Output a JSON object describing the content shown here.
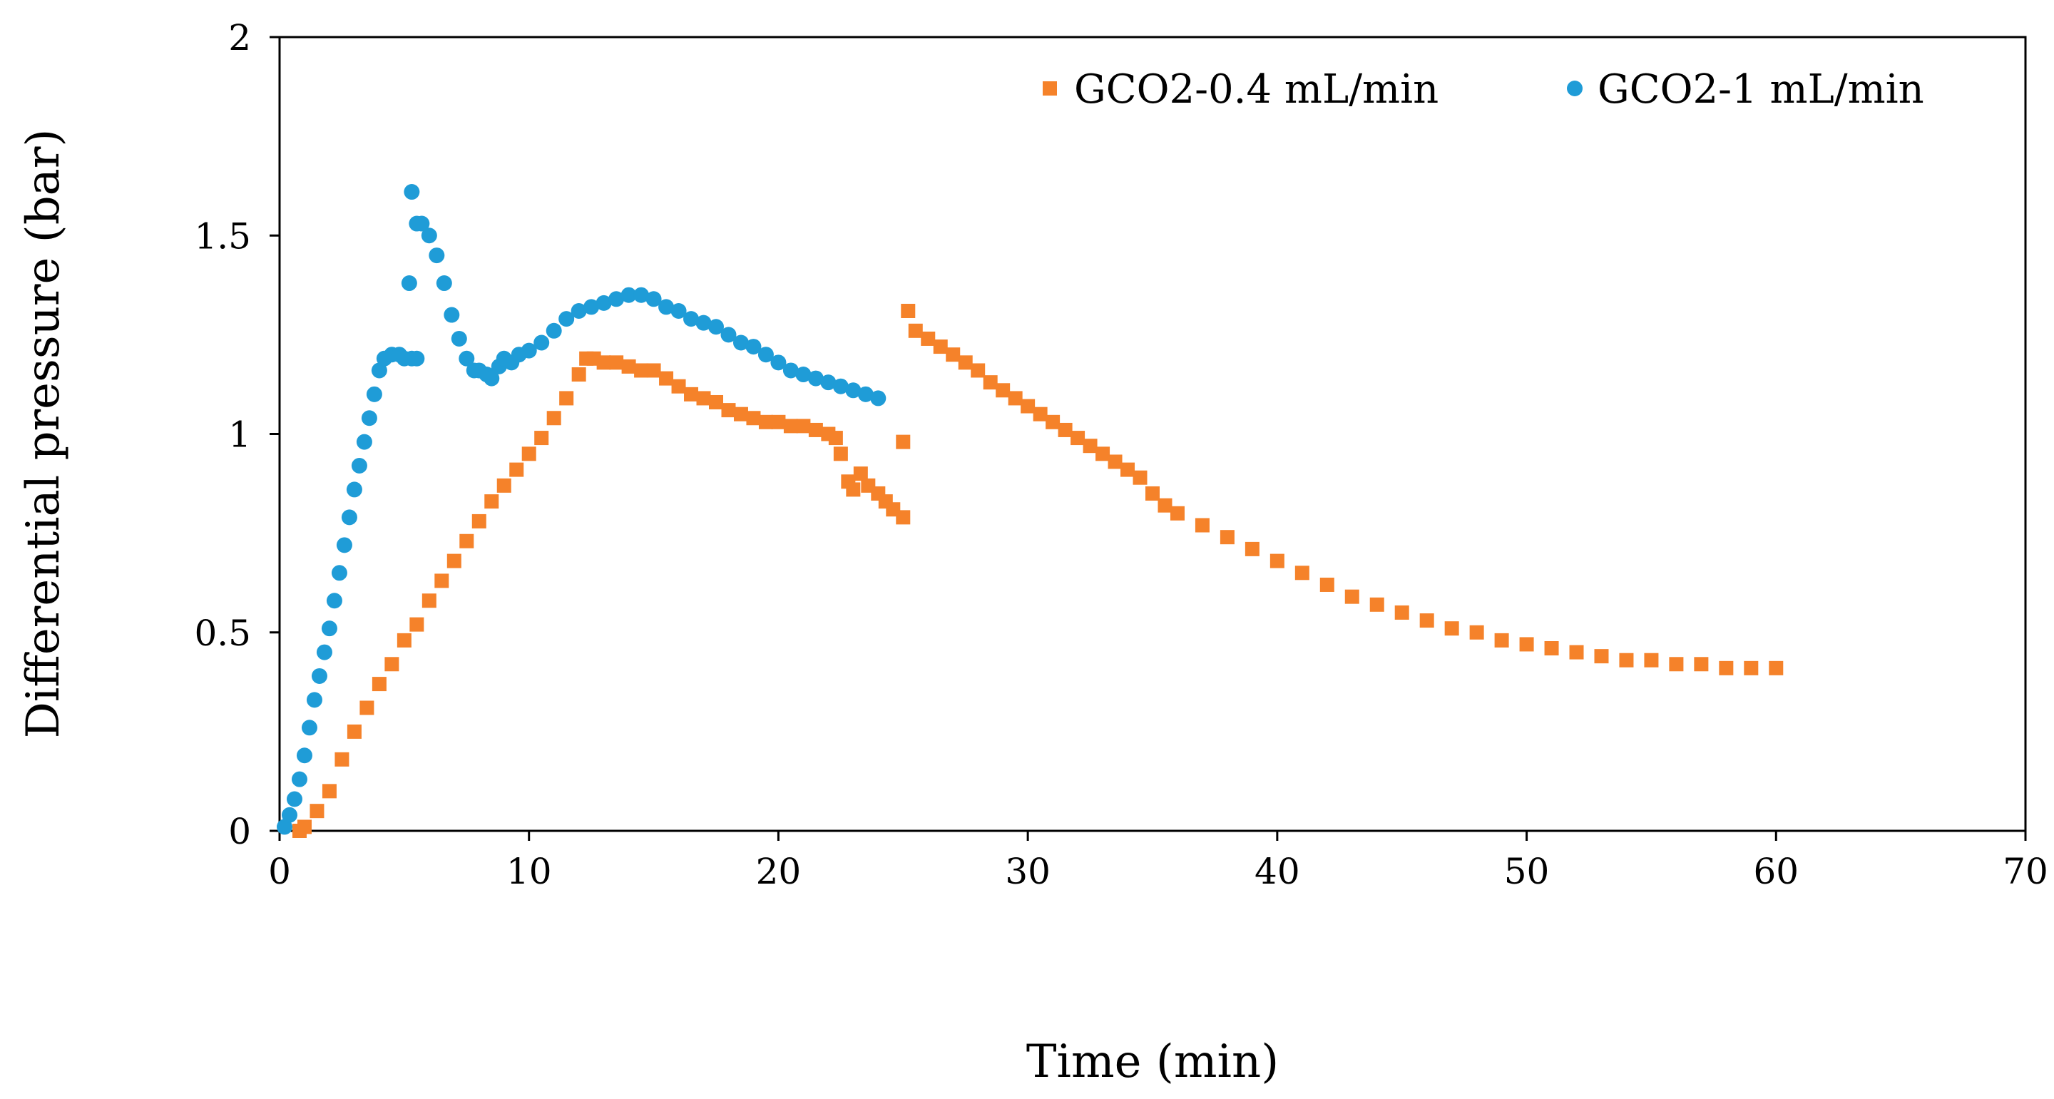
{
  "chart_data": {
    "type": "scatter",
    "title": "",
    "xlabel": "Time (min)",
    "ylabel": "Differential pressure (bar)",
    "xlim": [
      0,
      70
    ],
    "ylim": [
      0,
      2
    ],
    "xticks": [
      0,
      10,
      20,
      30,
      40,
      50,
      60,
      70
    ],
    "yticks": [
      0,
      0.5,
      1,
      1.5,
      2
    ],
    "ytick_labels": [
      "0",
      "0.5",
      "1",
      "1.5",
      "2"
    ],
    "grid": false,
    "legend_position": "top-right",
    "series": [
      {
        "name": "GCO2-0.4 mL/min",
        "marker": "square",
        "color": "#F5822A",
        "points": [
          [
            0.8,
            0.0
          ],
          [
            1.0,
            0.01
          ],
          [
            1.5,
            0.05
          ],
          [
            2.0,
            0.1
          ],
          [
            2.5,
            0.18
          ],
          [
            3.0,
            0.25
          ],
          [
            3.5,
            0.31
          ],
          [
            4.0,
            0.37
          ],
          [
            4.5,
            0.42
          ],
          [
            5.0,
            0.48
          ],
          [
            5.5,
            0.52
          ],
          [
            6.0,
            0.58
          ],
          [
            6.5,
            0.63
          ],
          [
            7.0,
            0.68
          ],
          [
            7.5,
            0.73
          ],
          [
            8.0,
            0.78
          ],
          [
            8.5,
            0.83
          ],
          [
            9.0,
            0.87
          ],
          [
            9.5,
            0.91
          ],
          [
            10.0,
            0.95
          ],
          [
            10.5,
            0.99
          ],
          [
            11.0,
            1.04
          ],
          [
            11.5,
            1.09
          ],
          [
            12.0,
            1.15
          ],
          [
            12.3,
            1.19
          ],
          [
            12.6,
            1.19
          ],
          [
            13.0,
            1.18
          ],
          [
            13.5,
            1.18
          ],
          [
            14.0,
            1.17
          ],
          [
            14.5,
            1.16
          ],
          [
            15.0,
            1.16
          ],
          [
            15.5,
            1.14
          ],
          [
            16.0,
            1.12
          ],
          [
            16.5,
            1.1
          ],
          [
            17.0,
            1.09
          ],
          [
            17.5,
            1.08
          ],
          [
            18.0,
            1.06
          ],
          [
            18.5,
            1.05
          ],
          [
            19.0,
            1.04
          ],
          [
            19.5,
            1.03
          ],
          [
            20.0,
            1.03
          ],
          [
            20.5,
            1.02
          ],
          [
            21.0,
            1.02
          ],
          [
            21.5,
            1.01
          ],
          [
            22.0,
            1.0
          ],
          [
            22.3,
            0.99
          ],
          [
            22.5,
            0.95
          ],
          [
            22.8,
            0.88
          ],
          [
            23.0,
            0.86
          ],
          [
            23.3,
            0.9
          ],
          [
            23.6,
            0.87
          ],
          [
            24.0,
            0.85
          ],
          [
            24.3,
            0.83
          ],
          [
            24.6,
            0.81
          ],
          [
            25.0,
            0.79
          ],
          [
            25.0,
            0.98
          ],
          [
            25.2,
            1.31
          ],
          [
            25.5,
            1.26
          ],
          [
            26.0,
            1.24
          ],
          [
            26.5,
            1.22
          ],
          [
            27.0,
            1.2
          ],
          [
            27.5,
            1.18
          ],
          [
            28.0,
            1.16
          ],
          [
            28.5,
            1.13
          ],
          [
            29.0,
            1.11
          ],
          [
            29.5,
            1.09
          ],
          [
            30.0,
            1.07
          ],
          [
            30.5,
            1.05
          ],
          [
            31.0,
            1.03
          ],
          [
            31.5,
            1.01
          ],
          [
            32.0,
            0.99
          ],
          [
            32.5,
            0.97
          ],
          [
            33.0,
            0.95
          ],
          [
            33.5,
            0.93
          ],
          [
            34.0,
            0.91
          ],
          [
            34.5,
            0.89
          ],
          [
            35.0,
            0.85
          ],
          [
            35.5,
            0.82
          ],
          [
            36.0,
            0.8
          ],
          [
            37.0,
            0.77
          ],
          [
            38.0,
            0.74
          ],
          [
            39.0,
            0.71
          ],
          [
            40.0,
            0.68
          ],
          [
            41.0,
            0.65
          ],
          [
            42.0,
            0.62
          ],
          [
            43.0,
            0.59
          ],
          [
            44.0,
            0.57
          ],
          [
            45.0,
            0.55
          ],
          [
            46.0,
            0.53
          ],
          [
            47.0,
            0.51
          ],
          [
            48.0,
            0.5
          ],
          [
            49.0,
            0.48
          ],
          [
            50.0,
            0.47
          ],
          [
            51.0,
            0.46
          ],
          [
            52.0,
            0.45
          ],
          [
            53.0,
            0.44
          ],
          [
            54.0,
            0.43
          ],
          [
            55.0,
            0.43
          ],
          [
            56.0,
            0.42
          ],
          [
            57.0,
            0.42
          ],
          [
            58.0,
            0.41
          ],
          [
            59.0,
            0.41
          ],
          [
            60.0,
            0.41
          ]
        ]
      },
      {
        "name": "GCO2-1 mL/min",
        "marker": "circle",
        "color": "#1F9CD7",
        "points": [
          [
            0.2,
            0.01
          ],
          [
            0.4,
            0.04
          ],
          [
            0.6,
            0.08
          ],
          [
            0.8,
            0.13
          ],
          [
            1.0,
            0.19
          ],
          [
            1.2,
            0.26
          ],
          [
            1.4,
            0.33
          ],
          [
            1.6,
            0.39
          ],
          [
            1.8,
            0.45
          ],
          [
            2.0,
            0.51
          ],
          [
            2.2,
            0.58
          ],
          [
            2.4,
            0.65
          ],
          [
            2.6,
            0.72
          ],
          [
            2.8,
            0.79
          ],
          [
            3.0,
            0.86
          ],
          [
            3.2,
            0.92
          ],
          [
            3.4,
            0.98
          ],
          [
            3.6,
            1.04
          ],
          [
            3.8,
            1.1
          ],
          [
            4.0,
            1.16
          ],
          [
            4.2,
            1.19
          ],
          [
            4.5,
            1.2
          ],
          [
            4.8,
            1.2
          ],
          [
            5.0,
            1.19
          ],
          [
            5.3,
            1.19
          ],
          [
            5.5,
            1.19
          ],
          [
            5.2,
            1.38
          ],
          [
            5.3,
            1.61
          ],
          [
            5.5,
            1.53
          ],
          [
            5.7,
            1.53
          ],
          [
            6.0,
            1.5
          ],
          [
            6.3,
            1.45
          ],
          [
            6.6,
            1.38
          ],
          [
            6.9,
            1.3
          ],
          [
            7.2,
            1.24
          ],
          [
            7.5,
            1.19
          ],
          [
            7.8,
            1.16
          ],
          [
            8.0,
            1.16
          ],
          [
            8.3,
            1.15
          ],
          [
            8.5,
            1.14
          ],
          [
            8.8,
            1.17
          ],
          [
            9.0,
            1.19
          ],
          [
            9.3,
            1.18
          ],
          [
            9.6,
            1.2
          ],
          [
            10.0,
            1.21
          ],
          [
            10.5,
            1.23
          ],
          [
            11.0,
            1.26
          ],
          [
            11.5,
            1.29
          ],
          [
            12.0,
            1.31
          ],
          [
            12.5,
            1.32
          ],
          [
            13.0,
            1.33
          ],
          [
            13.5,
            1.34
          ],
          [
            14.0,
            1.35
          ],
          [
            14.5,
            1.35
          ],
          [
            15.0,
            1.34
          ],
          [
            15.5,
            1.32
          ],
          [
            16.0,
            1.31
          ],
          [
            16.5,
            1.29
          ],
          [
            17.0,
            1.28
          ],
          [
            17.5,
            1.27
          ],
          [
            18.0,
            1.25
          ],
          [
            18.5,
            1.23
          ],
          [
            19.0,
            1.22
          ],
          [
            19.5,
            1.2
          ],
          [
            20.0,
            1.18
          ],
          [
            20.5,
            1.16
          ],
          [
            21.0,
            1.15
          ],
          [
            21.5,
            1.14
          ],
          [
            22.0,
            1.13
          ],
          [
            22.5,
            1.12
          ],
          [
            23.0,
            1.11
          ],
          [
            23.5,
            1.1
          ],
          [
            24.0,
            1.09
          ]
        ]
      }
    ]
  }
}
